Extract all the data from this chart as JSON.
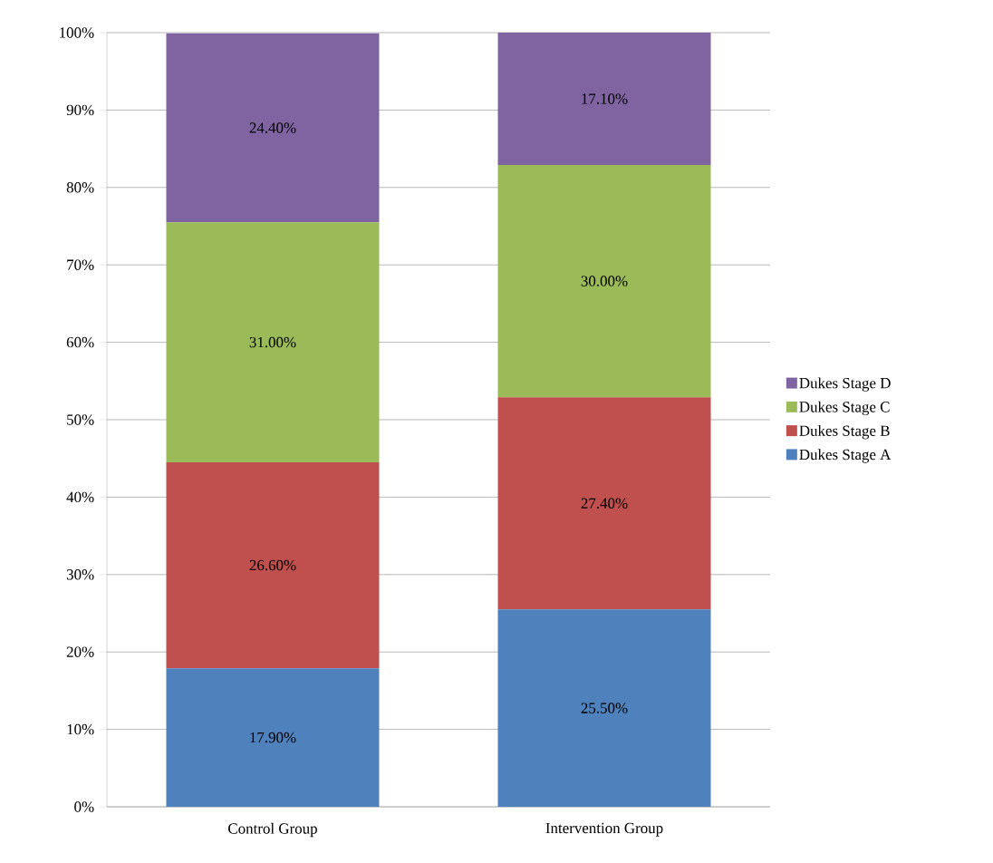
{
  "chart_data": {
    "type": "bar",
    "stacked": true,
    "categories": [
      "Control Group",
      "Intervention Group"
    ],
    "series": [
      {
        "name": "Dukes Stage A",
        "color": "#4f81bd",
        "values": [
          17.9,
          25.5
        ],
        "value_labels": [
          "17.90%",
          "25.50%"
        ]
      },
      {
        "name": "Dukes Stage B",
        "color": "#c0504d",
        "values": [
          26.6,
          27.4
        ],
        "value_labels": [
          "26.60%",
          "27.40%"
        ]
      },
      {
        "name": "Dukes Stage C",
        "color": "#9bbb59",
        "values": [
          31.0,
          30.0
        ],
        "value_labels": [
          "31.00%",
          "30.00%"
        ]
      },
      {
        "name": "Dukes Stage D",
        "color": "#8064a2",
        "values": [
          24.4,
          17.1
        ],
        "value_labels": [
          "24.40%",
          "17.10%"
        ]
      }
    ],
    "ylim": [
      0,
      100
    ],
    "yticks": [
      {
        "value": 0,
        "label": "0%"
      },
      {
        "value": 10,
        "label": "10%"
      },
      {
        "value": 20,
        "label": "20%"
      },
      {
        "value": 30,
        "label": "30%"
      },
      {
        "value": 40,
        "label": "40%"
      },
      {
        "value": 50,
        "label": "50%"
      },
      {
        "value": 60,
        "label": "60%"
      },
      {
        "value": 70,
        "label": "70%"
      },
      {
        "value": 80,
        "label": "80%"
      },
      {
        "value": 90,
        "label": "90%"
      },
      {
        "value": 100,
        "label": "100%"
      }
    ],
    "grid": "y",
    "legend": "right"
  }
}
